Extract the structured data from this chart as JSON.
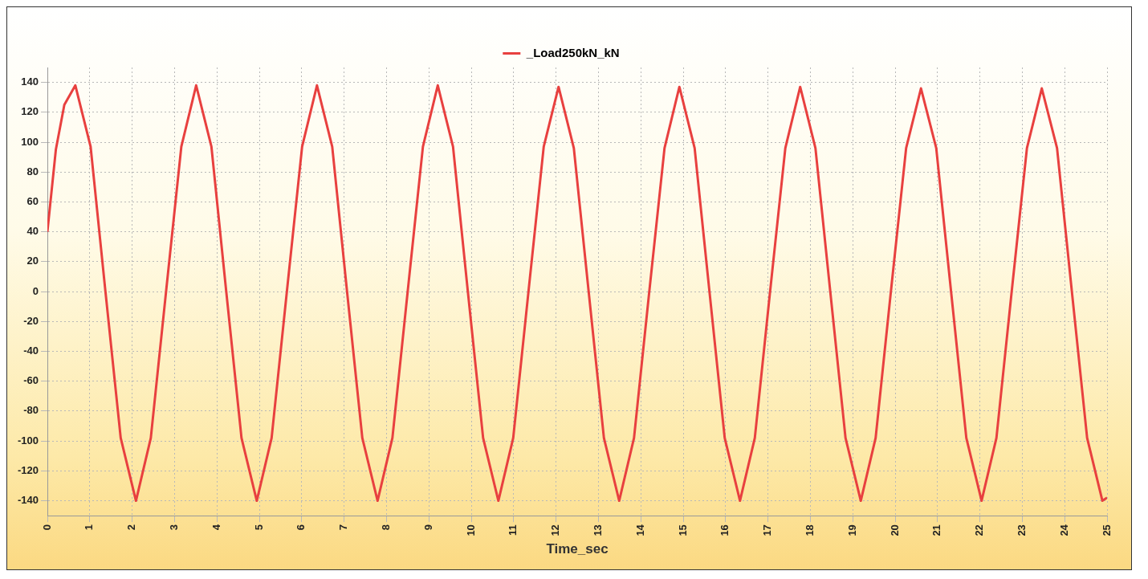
{
  "chart_data": {
    "type": "line",
    "xlabel": "Time_sec",
    "legend": "top",
    "grid": true,
    "marker": "none",
    "line_style": "solid",
    "xlim": [
      0,
      25
    ],
    "xticks": [
      0,
      1,
      2,
      3,
      4,
      5,
      6,
      7,
      8,
      9,
      10,
      11,
      12,
      13,
      14,
      15,
      16,
      17,
      18,
      19,
      20,
      21,
      22,
      23,
      24,
      25
    ],
    "ylim": [
      -150,
      150
    ],
    "yticks": [
      -140,
      -120,
      -100,
      -80,
      -60,
      -40,
      -20,
      0,
      20,
      40,
      60,
      80,
      100,
      120,
      140
    ],
    "series": [
      {
        "name": "_Load250kN_kN",
        "color": "#e8403f",
        "x": [
          0,
          0.2,
          0.4,
          0.66,
          1.02,
          1.37,
          1.73,
          2.09,
          2.44,
          2.8,
          3.16,
          3.51,
          3.87,
          4.22,
          4.58,
          4.94,
          5.29,
          5.65,
          6.01,
          6.36,
          6.72,
          7.07,
          7.43,
          7.79,
          8.14,
          8.5,
          8.86,
          9.21,
          9.57,
          9.92,
          10.28,
          10.64,
          10.99,
          11.35,
          11.71,
          12.06,
          12.42,
          12.77,
          13.13,
          13.49,
          13.84,
          14.2,
          14.56,
          14.91,
          15.27,
          15.62,
          15.98,
          16.34,
          16.69,
          17.05,
          17.41,
          17.76,
          18.12,
          18.47,
          18.83,
          19.19,
          19.54,
          19.9,
          20.26,
          20.61,
          20.97,
          21.32,
          21.68,
          22.04,
          22.39,
          22.75,
          23.11,
          23.46,
          23.82,
          24.17,
          24.53,
          24.89,
          25
        ],
        "values": [
          40,
          95,
          125,
          138,
          97,
          0,
          -98,
          -140,
          -98,
          0,
          97,
          138,
          97,
          0,
          -98,
          -140,
          -98,
          0,
          97,
          138,
          97,
          0,
          -98,
          -140,
          -98,
          0,
          97,
          138,
          97,
          0,
          -98,
          -140,
          -98,
          0,
          97,
          137,
          96,
          0,
          -98,
          -140,
          -98,
          0,
          96,
          137,
          96,
          0,
          -98,
          -140,
          -98,
          0,
          96,
          137,
          96,
          0,
          -98,
          -140,
          -98,
          0,
          96,
          136,
          96,
          0,
          -98,
          -140,
          -98,
          0,
          96,
          136,
          96,
          0,
          -98,
          -140,
          -138
        ]
      }
    ]
  }
}
